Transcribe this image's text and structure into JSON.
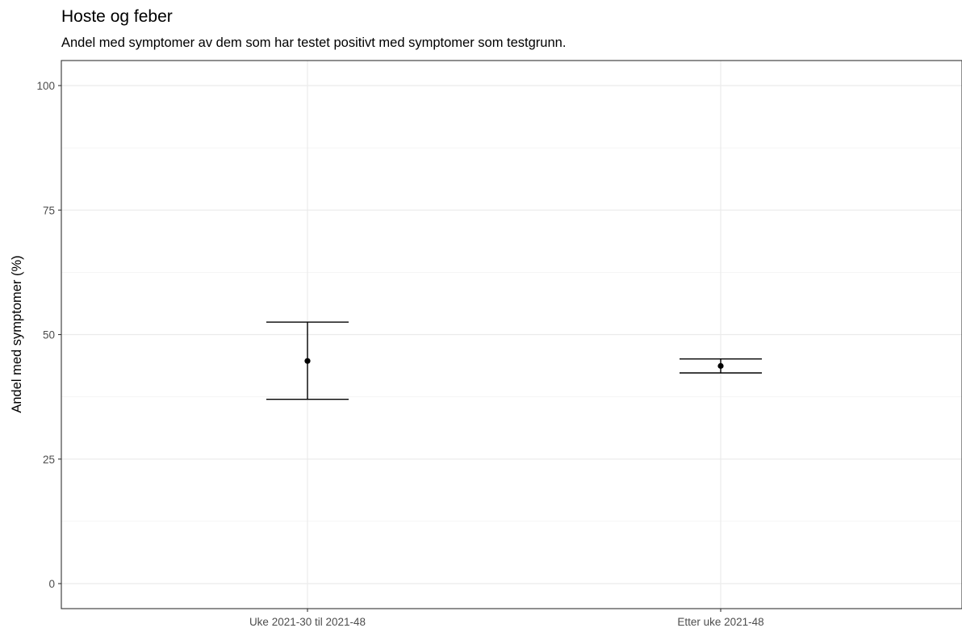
{
  "chart_data": {
    "type": "errorbar",
    "title": "Hoste og feber",
    "subtitle": "Andel med symptomer av dem som har testet positivt med symptomer som testgrunn.",
    "xlabel": "",
    "ylabel": "Andel med symptomer (%)",
    "ylim": [
      0,
      100
    ],
    "yticks": [
      0,
      25,
      50,
      75,
      100
    ],
    "grid": true,
    "legend": "none",
    "categories": [
      "Uke 2021-30 til 2021-48",
      "Etter uke 2021-48"
    ],
    "points": [
      {
        "category": "Uke 2021-30 til 2021-48",
        "value": 44.7,
        "lower": 37.0,
        "upper": 52.5
      },
      {
        "category": "Etter uke 2021-48",
        "value": 43.7,
        "lower": 42.3,
        "upper": 45.1
      }
    ]
  }
}
